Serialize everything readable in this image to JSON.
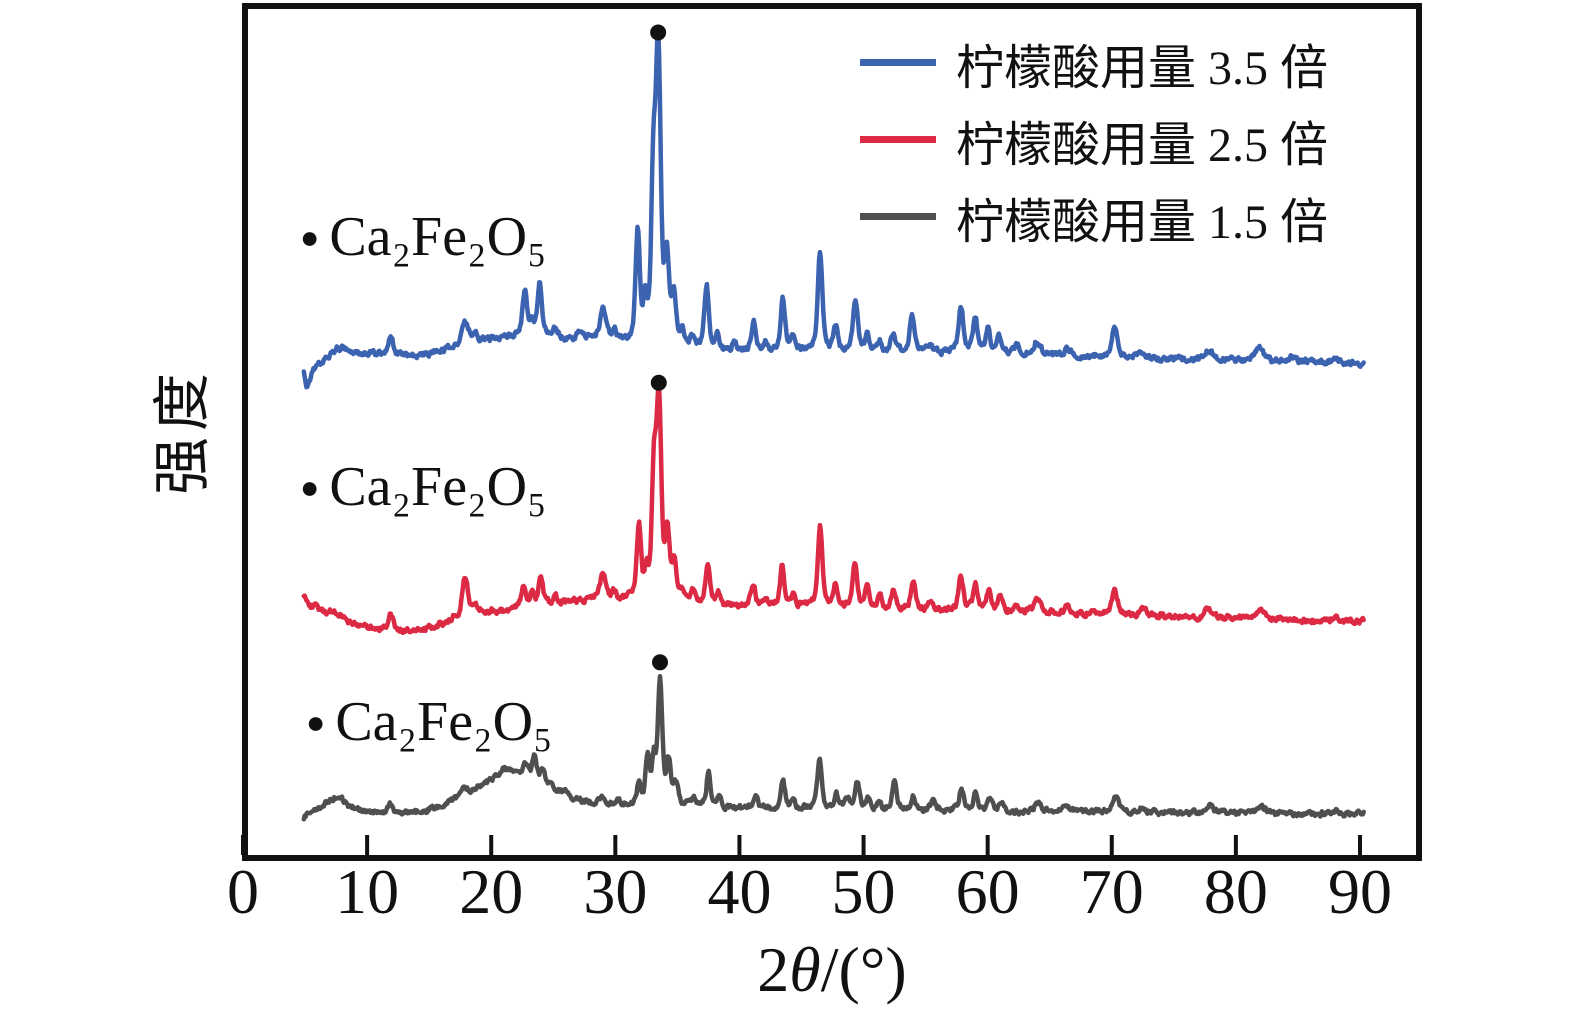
{
  "figure": {
    "background": "#ffffff",
    "frame_color": "#111111",
    "marker_color": "#111111"
  },
  "axes": {
    "x_label_parts": {
      "prefix": "2",
      "italic": "θ",
      "suffix": "/(°)"
    },
    "y_label": "强度",
    "x_ticks": [
      0,
      10,
      20,
      30,
      40,
      50,
      60,
      70,
      80,
      90
    ]
  },
  "legend": {
    "items": [
      {
        "label": "柠檬酸用量 3.5 倍"
      },
      {
        "label": "柠檬酸用量 2.5 倍"
      },
      {
        "label": "柠檬酸用量 1.5 倍"
      }
    ]
  },
  "phase_labels": [
    {
      "marker": "●",
      "formula": "Ca₂Fe₂O₅"
    },
    {
      "marker": "●",
      "formula": "Ca₂Fe₂O₅"
    },
    {
      "marker": "●",
      "formula": "Ca₂Fe₂O₅"
    }
  ],
  "chart_data": {
    "type": "line",
    "title": "",
    "xlabel": "2θ/(°)",
    "ylabel": "强度 (arbitrary intensity, unlabeled axis)",
    "xlim": [
      0,
      95
    ],
    "x_ticks": [
      0,
      10,
      20,
      30,
      40,
      50,
      60,
      70,
      80,
      90
    ],
    "x_range_data": [
      4.9,
      90.35
    ],
    "grid": false,
    "legend_position": "top-right",
    "phase": "Ca₂Fe₂O₅ (all labeled peaks, ● marks strongest reflection at ~33.5°)",
    "series": [
      {
        "name": "柠檬酸用量 3.5 倍",
        "color": "#3c63b0",
        "main_peak_deg": 33.45,
        "noise": 2.4,
        "baseline": [
          [
            4.9,
            374
          ],
          [
            5.2,
            389
          ],
          [
            5.7,
            369
          ],
          [
            6.5,
            361
          ],
          [
            8,
            356
          ],
          [
            10,
            353
          ],
          [
            12,
            355
          ],
          [
            14,
            356
          ],
          [
            15.5,
            353
          ],
          [
            17,
            348
          ],
          [
            19,
            342
          ],
          [
            21,
            337
          ],
          [
            23,
            334
          ],
          [
            24.5,
            336
          ],
          [
            26,
            340
          ],
          [
            27.5,
            338
          ],
          [
            29,
            337
          ],
          [
            30.5,
            344
          ],
          [
            32,
            348
          ],
          [
            34,
            350
          ],
          [
            36,
            351
          ],
          [
            38,
            352
          ],
          [
            42,
            352
          ],
          [
            46,
            352
          ],
          [
            50,
            353
          ],
          [
            54,
            353
          ],
          [
            58,
            353
          ],
          [
            62,
            354
          ],
          [
            66,
            356
          ],
          [
            70,
            357
          ],
          [
            74,
            359
          ],
          [
            78,
            360
          ],
          [
            82,
            361
          ],
          [
            86,
            362
          ],
          [
            90.4,
            364
          ]
        ],
        "peaks": [
          [
            7.7,
            9,
            0.55
          ],
          [
            11.9,
            20,
            0.17
          ],
          [
            17.9,
            22,
            0.26
          ],
          [
            18.7,
            8,
            0.18
          ],
          [
            22.7,
            42,
            0.16
          ],
          [
            23.3,
            10,
            0.14
          ],
          [
            23.9,
            52,
            0.15
          ],
          [
            25.2,
            8,
            0.18
          ],
          [
            27.2,
            6,
            0.2
          ],
          [
            29.0,
            26,
            0.2
          ],
          [
            29.9,
            9,
            0.14
          ],
          [
            31.8,
            112,
            0.15
          ],
          [
            32.4,
            32,
            0.13
          ],
          [
            33.05,
            150,
            0.14
          ],
          [
            33.45,
            295,
            0.18
          ],
          [
            34.15,
            80,
            0.15
          ],
          [
            34.7,
            46,
            0.17
          ],
          [
            35.4,
            16,
            0.14
          ],
          [
            36.2,
            10,
            0.14
          ],
          [
            37.35,
            66,
            0.15
          ],
          [
            38.2,
            16,
            0.14
          ],
          [
            39.6,
            10,
            0.14
          ],
          [
            41.15,
            30,
            0.16
          ],
          [
            42.1,
            10,
            0.14
          ],
          [
            43.5,
            52,
            0.15
          ],
          [
            44.3,
            12,
            0.14
          ],
          [
            46.5,
            100,
            0.16
          ],
          [
            47.75,
            24,
            0.15
          ],
          [
            49.35,
            50,
            0.17
          ],
          [
            50.3,
            16,
            0.14
          ],
          [
            51.3,
            12,
            0.14
          ],
          [
            52.4,
            20,
            0.17
          ],
          [
            53.9,
            36,
            0.16
          ],
          [
            55.3,
            8,
            0.17
          ],
          [
            57.85,
            46,
            0.17
          ],
          [
            59.0,
            36,
            0.15
          ],
          [
            60.0,
            24,
            0.15
          ],
          [
            60.9,
            20,
            0.15
          ],
          [
            62.3,
            8,
            0.19
          ],
          [
            64.0,
            14,
            0.24
          ],
          [
            66.4,
            7,
            0.24
          ],
          [
            70.25,
            28,
            0.21
          ],
          [
            72.5,
            6,
            0.24
          ],
          [
            77.85,
            10,
            0.28
          ],
          [
            81.9,
            12,
            0.28
          ],
          [
            84.5,
            5,
            0.28
          ],
          [
            88.0,
            5,
            0.28
          ]
        ]
      },
      {
        "name": "柠檬酸用量 2.5 倍",
        "color": "#dc2a45",
        "main_peak_deg": 33.5,
        "noise": 2.4,
        "baseline": [
          [
            4.9,
            597
          ],
          [
            5.3,
            604
          ],
          [
            6.5,
            612
          ],
          [
            8,
            620
          ],
          [
            9.5,
            626
          ],
          [
            11,
            629
          ],
          [
            13,
            631
          ],
          [
            15,
            628
          ],
          [
            16.5,
            622
          ],
          [
            18,
            614
          ],
          [
            19.5,
            612
          ],
          [
            21,
            611
          ],
          [
            23,
            608
          ],
          [
            25,
            604
          ],
          [
            27,
            601
          ],
          [
            29,
            599
          ],
          [
            31,
            601
          ],
          [
            33,
            604
          ],
          [
            35,
            607
          ],
          [
            37,
            604
          ],
          [
            39,
            606
          ],
          [
            42,
            607
          ],
          [
            46,
            607
          ],
          [
            50,
            609
          ],
          [
            54,
            610
          ],
          [
            58,
            611
          ],
          [
            62,
            612
          ],
          [
            66,
            613
          ],
          [
            70,
            614
          ],
          [
            74,
            616
          ],
          [
            78,
            618
          ],
          [
            82,
            619
          ],
          [
            86,
            621
          ],
          [
            90.4,
            622
          ]
        ],
        "peaks": [
          [
            7.6,
            5,
            0.5
          ],
          [
            11.9,
            15,
            0.17
          ],
          [
            17.9,
            38,
            0.2
          ],
          [
            18.7,
            9,
            0.18
          ],
          [
            22.6,
            22,
            0.16
          ],
          [
            23.3,
            16,
            0.14
          ],
          [
            24.0,
            30,
            0.15
          ],
          [
            25.2,
            6,
            0.18
          ],
          [
            29.0,
            24,
            0.22
          ],
          [
            29.9,
            8,
            0.14
          ],
          [
            31.9,
            72,
            0.15
          ],
          [
            32.5,
            22,
            0.13
          ],
          [
            33.1,
            115,
            0.14
          ],
          [
            33.5,
            200,
            0.18
          ],
          [
            34.2,
            62,
            0.15
          ],
          [
            34.75,
            38,
            0.17
          ],
          [
            35.4,
            12,
            0.14
          ],
          [
            36.3,
            14,
            0.14
          ],
          [
            37.45,
            40,
            0.15
          ],
          [
            38.3,
            12,
            0.14
          ],
          [
            41.1,
            24,
            0.16
          ],
          [
            42.1,
            8,
            0.14
          ],
          [
            43.45,
            42,
            0.15
          ],
          [
            44.3,
            10,
            0.14
          ],
          [
            46.5,
            80,
            0.16
          ],
          [
            47.7,
            22,
            0.15
          ],
          [
            49.3,
            42,
            0.17
          ],
          [
            50.3,
            24,
            0.15
          ],
          [
            51.3,
            14,
            0.14
          ],
          [
            52.4,
            18,
            0.17
          ],
          [
            54.0,
            30,
            0.16
          ],
          [
            55.4,
            7,
            0.17
          ],
          [
            57.85,
            34,
            0.17
          ],
          [
            59.0,
            26,
            0.15
          ],
          [
            60.1,
            20,
            0.15
          ],
          [
            61.0,
            16,
            0.15
          ],
          [
            62.3,
            7,
            0.19
          ],
          [
            64.0,
            12,
            0.24
          ],
          [
            66.4,
            6,
            0.24
          ],
          [
            70.25,
            22,
            0.21
          ],
          [
            72.5,
            5,
            0.24
          ],
          [
            77.85,
            9,
            0.28
          ],
          [
            82.0,
            10,
            0.28
          ],
          [
            88.0,
            4,
            0.28
          ]
        ]
      },
      {
        "name": "柠檬酸用量 1.5 倍",
        "color": "#4f4f4f",
        "main_peak_deg": 33.6,
        "noise": 2.2,
        "baseline": [
          [
            4.9,
            818
          ],
          [
            5.4,
            810
          ],
          [
            6.2,
            807
          ],
          [
            7.5,
            800
          ],
          [
            8.6,
            807
          ],
          [
            10,
            811
          ],
          [
            12,
            813
          ],
          [
            14,
            812
          ],
          [
            15.5,
            808
          ],
          [
            17,
            800
          ],
          [
            18.5,
            790
          ],
          [
            20,
            780
          ],
          [
            21,
            774
          ],
          [
            22,
            771
          ],
          [
            23,
            773
          ],
          [
            24,
            778
          ],
          [
            25,
            787
          ],
          [
            26,
            795
          ],
          [
            27.5,
            802
          ],
          [
            29,
            805
          ],
          [
            31,
            806
          ],
          [
            33,
            806
          ],
          [
            35,
            807
          ],
          [
            37,
            806
          ],
          [
            39,
            808
          ],
          [
            42,
            809
          ],
          [
            46,
            809
          ],
          [
            50,
            810
          ],
          [
            54,
            811
          ],
          [
            58,
            811
          ],
          [
            62,
            812
          ],
          [
            66,
            812
          ],
          [
            70,
            812
          ],
          [
            74,
            813
          ],
          [
            78,
            813
          ],
          [
            82,
            813
          ],
          [
            86,
            814
          ],
          [
            90.4,
            814
          ]
        ],
        "peaks": [
          [
            7.6,
            4,
            0.5
          ],
          [
            11.9,
            8,
            0.18
          ],
          [
            17.9,
            6,
            0.24
          ],
          [
            21.0,
            5,
            0.3
          ],
          [
            22.8,
            9,
            0.14
          ],
          [
            23.5,
            22,
            0.13
          ],
          [
            24.2,
            8,
            0.14
          ],
          [
            26.0,
            5,
            0.18
          ],
          [
            29.0,
            9,
            0.22
          ],
          [
            30.2,
            6,
            0.14
          ],
          [
            31.9,
            20,
            0.14
          ],
          [
            32.6,
            45,
            0.14
          ],
          [
            33.1,
            40,
            0.13
          ],
          [
            33.6,
            122,
            0.16
          ],
          [
            34.3,
            40,
            0.15
          ],
          [
            34.9,
            20,
            0.17
          ],
          [
            36.3,
            9,
            0.14
          ],
          [
            37.5,
            33,
            0.13
          ],
          [
            38.4,
            9,
            0.14
          ],
          [
            41.3,
            15,
            0.15
          ],
          [
            43.5,
            28,
            0.15
          ],
          [
            44.3,
            9,
            0.14
          ],
          [
            46.45,
            50,
            0.15
          ],
          [
            47.8,
            15,
            0.15
          ],
          [
            48.7,
            11,
            0.15
          ],
          [
            49.5,
            26,
            0.16
          ],
          [
            50.4,
            11,
            0.14
          ],
          [
            51.3,
            9,
            0.14
          ],
          [
            52.5,
            32,
            0.15
          ],
          [
            54.0,
            15,
            0.16
          ],
          [
            55.6,
            9,
            0.19
          ],
          [
            57.9,
            22,
            0.17
          ],
          [
            59.0,
            17,
            0.15
          ],
          [
            60.2,
            13,
            0.15
          ],
          [
            61.1,
            9,
            0.15
          ],
          [
            64.0,
            9,
            0.24
          ],
          [
            66.4,
            5,
            0.24
          ],
          [
            70.3,
            15,
            0.24
          ],
          [
            72.5,
            4,
            0.24
          ],
          [
            77.9,
            8,
            0.28
          ],
          [
            82.0,
            7,
            0.28
          ],
          [
            88.0,
            4,
            0.28
          ]
        ]
      }
    ]
  }
}
